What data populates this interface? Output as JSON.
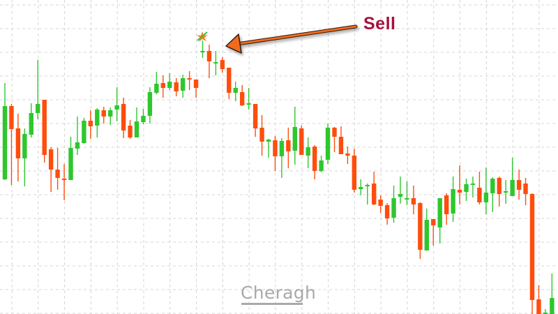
{
  "chart_data": {
    "type": "candlestick",
    "title": "",
    "xlabel": "",
    "ylabel": "",
    "grid": true,
    "colors": {
      "up": "#2ec72e",
      "down": "#ff4d0d",
      "grid": "#d4d4d4",
      "annotation_arrow": "#f26b1d",
      "annotation_text": "#a3123f"
    },
    "candles_ohlc": [
      [
        193,
        331,
        192,
        298
      ],
      [
        298,
        301,
        185,
        265
      ],
      [
        266,
        287,
        190,
        223
      ],
      [
        223,
        266,
        183,
        258
      ],
      [
        257,
        302,
        253,
        288
      ],
      [
        288,
        364,
        279,
        301
      ],
      [
        307,
        307,
        217,
        228
      ],
      [
        236,
        239,
        175,
        207
      ],
      [
        207,
        238,
        178,
        195
      ],
      [
        194,
        215,
        163,
        192
      ],
      [
        192,
        254,
        192,
        238
      ],
      [
        237,
        283,
        228,
        246
      ],
      [
        245,
        281,
        244,
        277
      ],
      [
        277,
        292,
        251,
        269
      ],
      [
        270,
        295,
        253,
        293
      ],
      [
        292,
        297,
        273,
        283
      ],
      [
        283,
        296,
        271,
        292
      ],
      [
        293,
        325,
        276,
        299
      ],
      [
        301,
        310,
        252,
        263
      ],
      [
        270,
        278,
        251,
        253
      ],
      [
        253,
        296,
        253,
        276
      ],
      [
        275,
        294,
        272,
        284
      ],
      [
        284,
        325,
        273,
        318
      ],
      [
        317,
        347,
        315,
        330
      ],
      [
        331,
        342,
        310,
        324
      ],
      [
        324,
        345,
        321,
        333
      ],
      [
        332,
        338,
        312,
        319
      ],
      [
        320,
        343,
        310,
        338
      ],
      [
        338,
        348,
        321,
        337
      ],
      [
        336,
        336,
        310,
        324
      ],
      [
        376,
        392,
        367,
        377
      ],
      [
        377,
        386,
        338,
        362
      ],
      [
        359,
        377,
        342,
        361
      ],
      [
        364,
        368,
        346,
        351
      ],
      [
        353,
        353,
        308,
        317
      ],
      [
        317,
        333,
        305,
        324
      ],
      [
        318,
        328,
        298,
        299
      ],
      [
        301,
        324,
        293,
        302
      ],
      [
        301,
        301,
        254,
        266
      ],
      [
        267,
        285,
        227,
        247
      ],
      [
        247,
        251,
        224,
        250
      ],
      [
        249,
        255,
        205,
        226
      ],
      [
        226,
        252,
        195,
        248
      ],
      [
        249,
        267,
        209,
        233
      ],
      [
        234,
        297,
        214,
        268
      ],
      [
        266,
        270,
        228,
        228
      ],
      [
        227,
        253,
        209,
        239
      ],
      [
        240,
        242,
        193,
        205
      ],
      [
        205,
        227,
        203,
        220
      ],
      [
        221,
        273,
        215,
        267
      ],
      [
        267,
        268,
        232,
        254
      ],
      [
        254,
        269,
        229,
        229
      ],
      [
        230,
        240,
        215,
        227
      ],
      [
        227,
        237,
        174,
        178
      ],
      [
        179,
        193,
        170,
        182
      ],
      [
        183,
        187,
        157,
        185
      ],
      [
        187,
        204,
        156,
        157
      ],
      [
        164,
        170,
        145,
        155
      ],
      [
        156,
        159,
        128,
        137
      ],
      [
        138,
        184,
        131,
        166
      ],
      [
        168,
        197,
        158,
        172
      ],
      [
        165,
        190,
        156,
        166
      ],
      [
        166,
        184,
        143,
        157
      ],
      [
        159,
        160,
        79,
        92
      ],
      [
        91,
        151,
        91,
        135
      ],
      [
        136,
        136,
        98,
        127
      ],
      [
        124,
        166,
        101,
        166
      ],
      [
        170,
        173,
        128,
        143
      ],
      [
        144,
        197,
        132,
        179
      ],
      [
        178,
        213,
        157,
        174
      ],
      [
        175,
        194,
        162,
        186
      ],
      [
        186,
        197,
        167,
        187
      ],
      [
        181,
        204,
        157,
        160
      ],
      [
        160,
        210,
        143,
        174
      ],
      [
        173,
        196,
        146,
        194
      ],
      [
        195,
        197,
        154,
        172
      ],
      [
        175,
        192,
        158,
        176
      ],
      [
        169,
        224,
        169,
        192
      ],
      [
        192,
        207,
        164,
        178
      ],
      [
        187,
        195,
        156,
        172
      ],
      [
        172,
        173,
        0,
        20
      ],
      [
        21,
        41,
        0,
        0
      ],
      [
        0,
        7,
        0,
        2
      ],
      [
        0,
        58,
        0,
        23
      ]
    ],
    "annotations": [
      {
        "text": "Sell",
        "target_candle": 30,
        "marker": "sell-signal-star",
        "icon": "arrow-left-icon"
      }
    ]
  },
  "watermark": {
    "text": "Cheragh"
  }
}
